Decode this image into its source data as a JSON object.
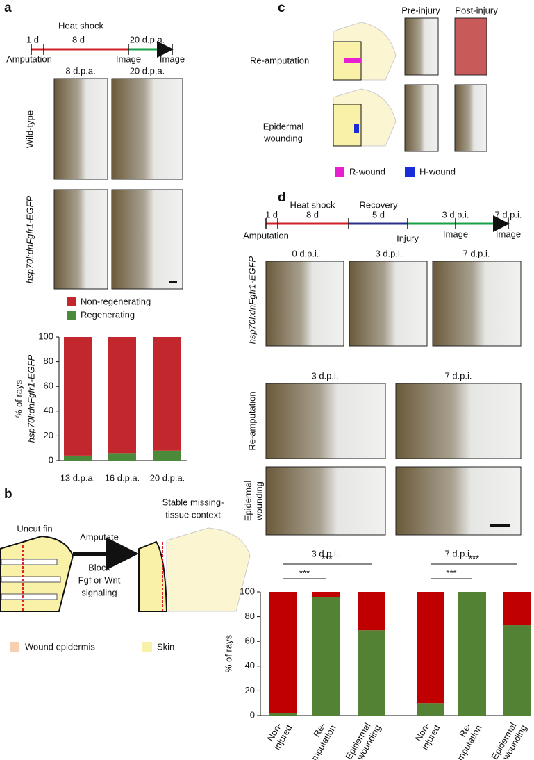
{
  "panel_a": {
    "letter": "a",
    "timeline": {
      "top": "Heat shock",
      "marks": [
        "1 d",
        "8 d",
        "20 d.p.a."
      ],
      "bottom": [
        "Amputation",
        "Image",
        "Image"
      ]
    },
    "columns": [
      "8 d.p.a.",
      "20 d.p.a."
    ],
    "rows": [
      "Wild-type",
      "hsp70l:dnFgfr1-EGFP"
    ],
    "chart": {
      "type": "stacked-bar",
      "y_label": [
        "% of rays",
        "hsp70l:dnFgfr1-EGFP"
      ],
      "categories": [
        "13 d.p.a.",
        "16 d.p.a.",
        "20 d.p.a."
      ],
      "series": [
        {
          "name": "Non-regenerating",
          "color": "#c1272d",
          "values": [
            96,
            94,
            92
          ]
        },
        {
          "name": "Regenerating",
          "color": "#4a8a3a",
          "values": [
            4,
            6,
            8
          ]
        }
      ],
      "ylim": [
        0,
        100
      ],
      "yticks": [
        0,
        20,
        40,
        60,
        80,
        100
      ]
    }
  },
  "panel_b": {
    "letter": "b",
    "left": "Uncut fin",
    "arrow_top": "Amputate",
    "arrow_bottom": [
      "Block",
      "Fgf or Wnt",
      "signaling"
    ],
    "right": [
      "Stable missing-",
      "tissue context"
    ],
    "legend": [
      "Wound epidermis",
      "Skin"
    ]
  },
  "panel_c": {
    "letter": "c",
    "columns": [
      "Pre-injury",
      "Post-injury"
    ],
    "rows": [
      [
        "Re-amputation"
      ],
      [
        "Epidermal",
        "wounding"
      ]
    ],
    "legend": [
      "R-wound",
      "H-wound"
    ]
  },
  "panel_d": {
    "letter": "d",
    "timeline": {
      "top": [
        "Heat shock",
        "Recovery"
      ],
      "marks": [
        "1 d",
        "8 d",
        "5 d",
        "3 d.p.i.",
        "7 d.p.i."
      ],
      "bottom": [
        "Amputation",
        "Injury",
        "Image",
        "Image"
      ]
    },
    "columns": [
      "0 d.p.i.",
      "3 d.p.i.",
      "7 d.p.i."
    ],
    "row_label": "hsp70l:dnFgfr1-EGFP",
    "zoom_columns": [
      "3 d.p.i.",
      "7 d.p.i."
    ],
    "zoom_rows": [
      [
        "Re-amputation"
      ],
      [
        "Epidermal",
        "wounding"
      ]
    ],
    "zoom_bottom": [
      "3 d.p.i.",
      "7 d.p.i."
    ],
    "chart": {
      "type": "stacked-bar",
      "y_label": [
        "% of rays"
      ],
      "categories": [
        [
          "Non-",
          "injured"
        ],
        [
          "Re-",
          "amputation"
        ],
        [
          "Epidermal",
          "wounding"
        ],
        [
          "Non-",
          "injured"
        ],
        [
          "Re-",
          "amputation"
        ],
        [
          "Epidermal",
          "wounding"
        ]
      ],
      "series": [
        {
          "color": "#c00000",
          "values": [
            98,
            4,
            31,
            90,
            0,
            27
          ]
        },
        {
          "color": "#548235",
          "values": [
            2,
            96,
            69,
            10,
            100,
            73
          ]
        }
      ],
      "significance": [
        "***",
        "***",
        "***",
        "***"
      ],
      "ylim": [
        0,
        100
      ],
      "yticks": [
        0,
        20,
        40,
        60,
        80,
        100
      ]
    }
  }
}
